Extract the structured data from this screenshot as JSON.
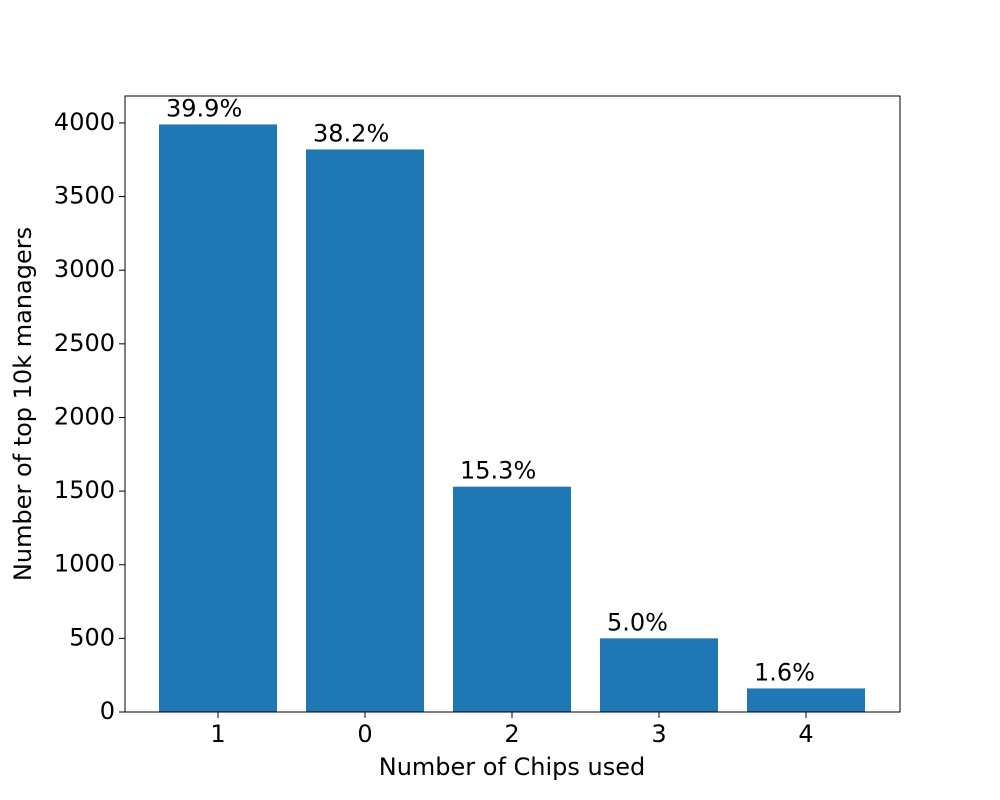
{
  "chart_data": {
    "type": "bar",
    "xlabel": "Number of Chips used",
    "ylabel": "Number of top 10k managers",
    "categories": [
      "1",
      "0",
      "2",
      "3",
      "4"
    ],
    "values": [
      3990,
      3820,
      1530,
      500,
      160
    ],
    "value_labels": [
      "39.9%",
      "38.2%",
      "15.3%",
      "5.0%",
      "1.6%"
    ],
    "color": "#1f77b4",
    "ylim": [
      0,
      4183
    ],
    "yticks": [
      0,
      500,
      1000,
      1500,
      2000,
      2500,
      3000,
      3500,
      4000
    ],
    "grid": false
  }
}
